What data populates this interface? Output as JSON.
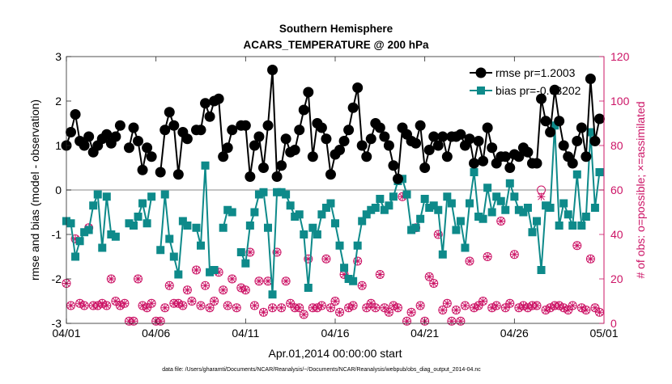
{
  "chart_data": {
    "type": "line",
    "title": "Southern Hemisphere",
    "subtitle": "ACARS_TEMPERATURE @ 200 hPa",
    "xlabel": "Apr.01,2014 00:00:00 start",
    "ylabel": "rmse and bias (model - observation)",
    "y2label": "# of obs: o=possible; ×=assimilated",
    "footnote": "data file: /Users/gharamti/Documents/NCAR/Reanalysis/~/Documents/NCAR/Reanalysis/webpub/obs_diag_output_2014-04.nc",
    "xlim": [
      1,
      31
    ],
    "ylim": [
      -3,
      3
    ],
    "y2lim": [
      0,
      120
    ],
    "xticks": [
      1,
      6,
      11,
      16,
      21,
      26,
      31
    ],
    "xtick_labels": [
      "04/01",
      "04/06",
      "04/11",
      "04/16",
      "04/21",
      "04/26",
      "05/01"
    ],
    "yticks": [
      -3,
      -2,
      -1,
      0,
      1,
      2,
      3
    ],
    "ytick_labels": [
      "-3",
      "-2",
      "-1",
      "0",
      "1",
      "2",
      "3"
    ],
    "y2ticks": [
      0,
      20,
      40,
      60,
      80,
      100,
      120
    ],
    "y2tick_labels": [
      "0",
      "20",
      "40",
      "60",
      "80",
      "100",
      "120"
    ],
    "grid": false,
    "legend_position": "top-right",
    "colors": {
      "rmse": "#000000",
      "bias": "#0e8a8a",
      "obs": "#cc1466",
      "zero_line": "#b0b0b0"
    },
    "x": [
      1.0,
      1.25,
      1.5,
      1.75,
      2.0,
      2.25,
      2.5,
      2.75,
      3.0,
      3.25,
      3.5,
      3.75,
      4.0,
      4.25,
      4.5,
      4.75,
      5.0,
      5.25,
      5.5,
      5.75,
      6.0,
      6.25,
      6.5,
      6.75,
      7.0,
      7.25,
      7.5,
      7.75,
      8.0,
      8.25,
      8.5,
      8.75,
      9.0,
      9.25,
      9.5,
      9.75,
      10.0,
      10.25,
      10.5,
      10.75,
      11.0,
      11.25,
      11.5,
      11.75,
      12.0,
      12.25,
      12.5,
      12.75,
      13.0,
      13.25,
      13.5,
      13.75,
      14.0,
      14.25,
      14.5,
      14.75,
      15.0,
      15.25,
      15.5,
      15.75,
      16.0,
      16.25,
      16.5,
      16.75,
      17.0,
      17.25,
      17.5,
      17.75,
      18.0,
      18.25,
      18.5,
      18.75,
      19.0,
      19.25,
      19.5,
      19.75,
      20.0,
      20.25,
      20.5,
      20.75,
      21.0,
      21.25,
      21.5,
      21.75,
      22.0,
      22.25,
      22.5,
      22.75,
      23.0,
      23.25,
      23.5,
      23.75,
      24.0,
      24.25,
      24.5,
      24.75,
      25.0,
      25.25,
      25.5,
      25.75,
      26.0,
      26.25,
      26.5,
      26.75,
      27.0,
      27.25,
      27.5,
      27.75,
      28.0,
      28.25,
      28.5,
      28.75,
      29.0,
      29.25,
      29.5,
      29.75,
      30.0,
      30.25,
      30.5,
      30.75
    ],
    "series": [
      {
        "name": "rmse pr=1.2003",
        "values": [
          1.0,
          1.3,
          1.7,
          1.1,
          1.0,
          1.2,
          0.85,
          1.0,
          1.15,
          1.25,
          1.05,
          1.2,
          1.45,
          null,
          0.95,
          1.4,
          1.1,
          0.45,
          0.95,
          0.75,
          null,
          0.4,
          1.35,
          1.75,
          1.45,
          0.35,
          1.3,
          1.15,
          null,
          1.35,
          1.35,
          1.95,
          1.65,
          2.0,
          2.05,
          0.75,
          0.95,
          1.35,
          null,
          1.45,
          1.45,
          0.3,
          1.0,
          1.2,
          0.5,
          1.45,
          2.7,
          0.3,
          0.55,
          1.15,
          0.85,
          0.9,
          1.35,
          1.8,
          2.2,
          0.75,
          1.5,
          1.4,
          1.15,
          0.35,
          0.8,
          0.9,
          1.1,
          1.35,
          1.85,
          2.3,
          1.0,
          0.75,
          1.15,
          1.5,
          1.4,
          1.2,
          1.0,
          0.55,
          0.25,
          1.4,
          1.25,
          1.1,
          1.05,
          1.45,
          0.5,
          0.9,
          1.2,
          1.0,
          1.2,
          0.75,
          1.2,
          1.2,
          1.25,
          1.0,
          1.15,
          0.6,
          1.1,
          0.65,
          1.4,
          0.95,
          0.6,
          0.75,
          0.75,
          0.5,
          0.8,
          0.75,
          0.95,
          0.85,
          0.6,
          0.6,
          2.05,
          1.55,
          1.3,
          2.25,
          1.55,
          1.0,
          0.75,
          0.6,
          1.1,
          1.4,
          0.75,
          2.5,
          1.1,
          1.6
        ]
      },
      {
        "name": "bias pr=-0.63202",
        "values": [
          -0.7,
          -0.75,
          -1.5,
          -1.15,
          -0.95,
          -0.9,
          -0.35,
          -0.1,
          -1.3,
          -0.15,
          -1.0,
          -1.05,
          null,
          null,
          -0.75,
          -0.8,
          -0.6,
          -0.3,
          -0.75,
          -0.15,
          null,
          -1.35,
          -0.1,
          -1.1,
          -1.5,
          -1.9,
          -0.7,
          -0.8,
          null,
          -0.85,
          -1.25,
          0.55,
          -1.85,
          -1.8,
          null,
          -0.85,
          -0.45,
          -0.5,
          null,
          -1.4,
          -1.65,
          -0.8,
          -0.5,
          -0.1,
          -0.05,
          -0.85,
          -2.35,
          -0.05,
          -0.05,
          -0.1,
          -0.35,
          -0.6,
          -0.55,
          -1.0,
          -2.2,
          -0.85,
          -1.0,
          -0.55,
          -0.4,
          -0.3,
          -0.75,
          -1.25,
          -1.75,
          -2.0,
          -2.05,
          -1.25,
          -0.7,
          -0.55,
          -0.45,
          -0.4,
          -0.2,
          -0.45,
          -0.35,
          -0.15,
          0.2,
          0.25,
          -0.1,
          -0.9,
          -0.85,
          -0.65,
          -0.2,
          -0.4,
          -0.35,
          -0.45,
          -1.45,
          -0.15,
          -0.3,
          -0.9,
          -0.7,
          -1.3,
          -0.3,
          0.4,
          -0.6,
          -0.65,
          0.05,
          -0.5,
          -0.15,
          -0.25,
          -0.45,
          0.15,
          -0.15,
          -0.45,
          -0.5,
          -0.4,
          -0.95,
          -0.7,
          -1.8,
          -0.35,
          -0.4,
          1.45,
          -0.8,
          -0.3,
          -0.55,
          -0.8,
          0.35,
          -0.8,
          -0.6,
          1.3,
          -0.4,
          0.4
        ]
      }
    ],
    "obs_possible": [
      18,
      8,
      38,
      9,
      8,
      43,
      8,
      8,
      9,
      8,
      20,
      10,
      8,
      9,
      1,
      1,
      20,
      8,
      7,
      9,
      1,
      1,
      7,
      17,
      9,
      9,
      8,
      15,
      10,
      24,
      8,
      17,
      7,
      10,
      23,
      15,
      8,
      20,
      7,
      16,
      15,
      32,
      8,
      19,
      5,
      19,
      7,
      32,
      7,
      19,
      9,
      7,
      7,
      4,
      29,
      7,
      7,
      8,
      29,
      7,
      10,
      5,
      22,
      7,
      8,
      28,
      17,
      7,
      9,
      7,
      22,
      7,
      5,
      8,
      7,
      57,
      1,
      5,
      43,
      8,
      1,
      21,
      18,
      40,
      6,
      9,
      1,
      6,
      1,
      8,
      28,
      7,
      8,
      10,
      30,
      7,
      8,
      46,
      7,
      9,
      31,
      7,
      8,
      7,
      8,
      8,
      60,
      6,
      7,
      8,
      8,
      7,
      6,
      8,
      35,
      7,
      6,
      29,
      7,
      5
    ],
    "obs_assimilated": [
      18,
      8,
      38,
      9,
      8,
      43,
      8,
      8,
      9,
      8,
      20,
      10,
      8,
      9,
      1,
      1,
      20,
      8,
      7,
      9,
      1,
      1,
      7,
      17,
      9,
      9,
      8,
      15,
      10,
      24,
      8,
      17,
      7,
      10,
      23,
      15,
      8,
      20,
      7,
      16,
      15,
      32,
      8,
      19,
      5,
      19,
      7,
      32,
      7,
      19,
      9,
      7,
      7,
      4,
      29,
      7,
      7,
      8,
      29,
      7,
      10,
      5,
      22,
      7,
      8,
      28,
      17,
      7,
      9,
      7,
      22,
      7,
      5,
      8,
      7,
      57,
      1,
      5,
      43,
      8,
      1,
      21,
      18,
      40,
      6,
      9,
      1,
      6,
      1,
      8,
      28,
      7,
      8,
      10,
      30,
      7,
      8,
      46,
      7,
      9,
      31,
      7,
      8,
      7,
      8,
      8,
      57,
      6,
      7,
      8,
      8,
      7,
      6,
      8,
      35,
      7,
      6,
      29,
      7,
      5
    ]
  }
}
